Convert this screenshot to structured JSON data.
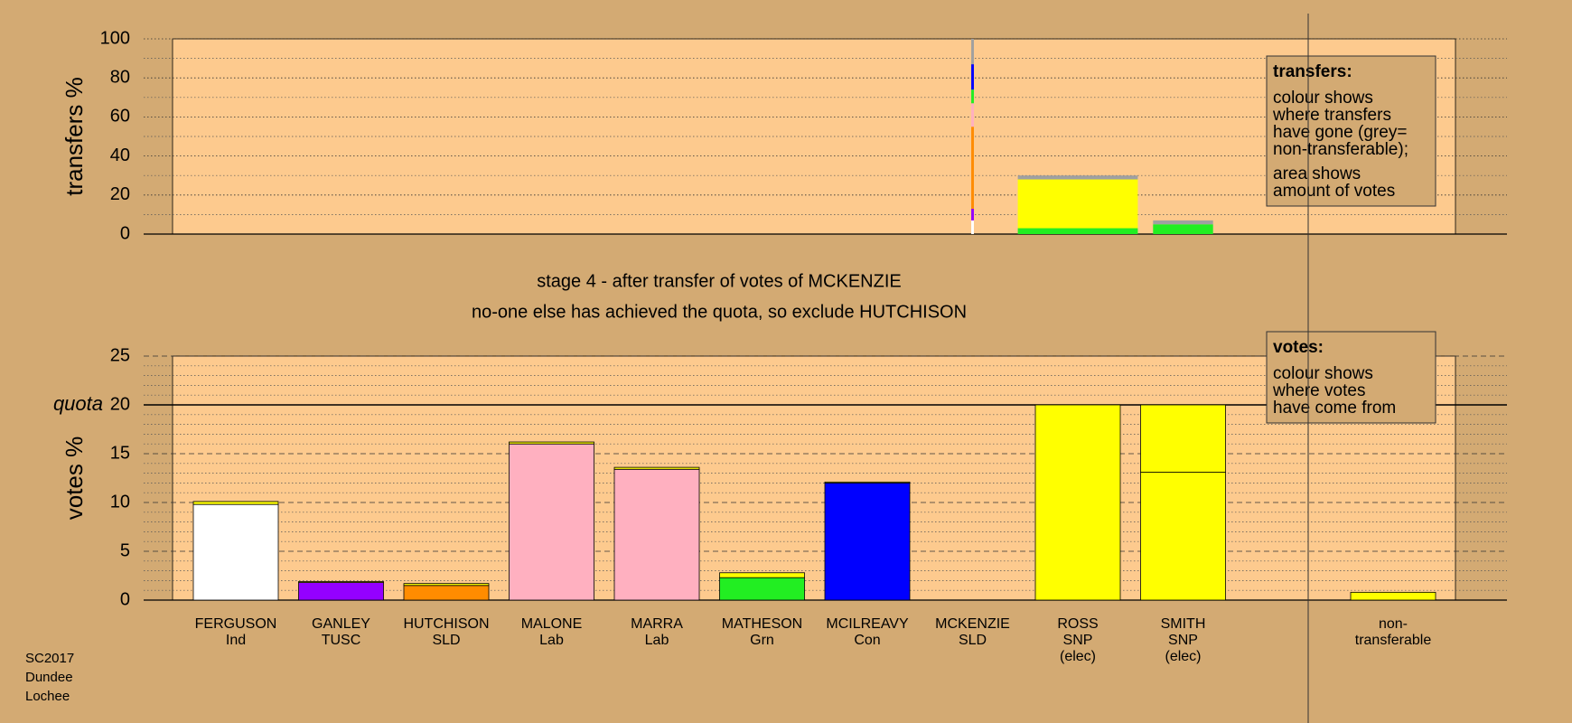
{
  "chart_data": [
    {
      "type": "transfer-bar",
      "ylabel": "transfers %",
      "ylim": [
        0,
        100
      ],
      "yticks": [
        0,
        20,
        40,
        60,
        80,
        100
      ],
      "minor_yticks": [
        10,
        30,
        50,
        70,
        90
      ],
      "widths": [
        0,
        0,
        0,
        0,
        0,
        0,
        0,
        0.025,
        1.14,
        0.57,
        0
      ],
      "series": [
        {
          "color": "#ffffff",
          "values": [
            0,
            0,
            0,
            0,
            0,
            0,
            0,
            7,
            0,
            0,
            0
          ]
        },
        {
          "color": "#9400ff",
          "values": [
            0,
            0,
            0,
            0,
            0,
            0,
            0,
            6,
            0,
            0,
            0
          ]
        },
        {
          "color": "#ff8c00",
          "values": [
            0,
            0,
            0,
            0,
            0,
            0,
            0,
            42,
            0,
            0,
            0
          ]
        },
        {
          "color": "#ffb0c0",
          "values": [
            0,
            0,
            0,
            0,
            0,
            0,
            0,
            12,
            0,
            0,
            0
          ]
        },
        {
          "color": "#22ee22",
          "values": [
            0,
            0,
            0,
            0,
            0,
            0,
            0,
            7,
            3,
            5,
            0
          ]
        },
        {
          "color": "#0000ff",
          "values": [
            0,
            0,
            0,
            0,
            0,
            0,
            0,
            13,
            0,
            0,
            0
          ]
        },
        {
          "color": "#ffff00",
          "values": [
            0,
            0,
            0,
            0,
            0,
            0,
            0,
            0,
            25,
            0,
            0
          ]
        },
        {
          "color": "#a0a0a0",
          "values": [
            0,
            0,
            0,
            0,
            0,
            0,
            0,
            13,
            2,
            2,
            0
          ]
        }
      ],
      "note": {
        "heading": "transfers:",
        "paragraphs": [
          [
            "colour shows",
            "where transfers",
            "have gone (grey=",
            "non-transferable);"
          ],
          [
            "area shows",
            "amount of votes"
          ]
        ]
      }
    },
    {
      "type": "stacked-bar",
      "title": "stage 4 - after transfer of votes of MCKENZIE",
      "subtitle": "no-one else has achieved the quota, so exclude HUTCHISON",
      "ylabel": "votes %",
      "ylim": [
        0,
        25
      ],
      "yticks": [
        0,
        5,
        10,
        15,
        20,
        25
      ],
      "minor_yticks": [
        1,
        2,
        3,
        4,
        6,
        7,
        8,
        9,
        11,
        12,
        13,
        14,
        16,
        17,
        18,
        19,
        21,
        22,
        23,
        24
      ],
      "quota": {
        "value": 20,
        "label": "quota"
      },
      "categories": [
        [
          "FERGUSON",
          "Ind"
        ],
        [
          "GANLEY",
          "TUSC"
        ],
        [
          "HUTCHISON",
          "SLD"
        ],
        [
          "MALONE",
          "Lab"
        ],
        [
          "MARRA",
          "Lab"
        ],
        [
          "MATHESON",
          "Grn"
        ],
        [
          "MCILREAVY",
          "Con"
        ],
        [
          "MCKENZIE",
          "SLD"
        ],
        [
          "ROSS",
          "SNP",
          "(elec)"
        ],
        [
          "SMITH",
          "SNP",
          "(elec)"
        ],
        [
          "non-",
          "transferable"
        ]
      ],
      "series": [
        {
          "colors": [
            "#ffffff",
            "#9400ff",
            "#ff8c00",
            "#ffb0c0",
            "#ffb0c0",
            "#22ee22",
            "#0000ff",
            "#ff8c00",
            "#ffff00",
            "#ffff00",
            "#ffff00"
          ],
          "values": [
            9.8,
            1.8,
            1.5,
            16.0,
            13.4,
            2.3,
            12.0,
            0,
            20,
            13.1,
            0
          ]
        },
        {
          "color": "#ffff00",
          "values": [
            0.3,
            0.1,
            0.2,
            0.2,
            0.2,
            0.5,
            0.1,
            0,
            0,
            6.9,
            0.8
          ]
        }
      ],
      "note": {
        "heading": "votes:",
        "paragraphs": [
          [
            "colour shows",
            "where votes",
            "have come from"
          ]
        ]
      }
    }
  ],
  "footer": [
    "SC2017",
    "Dundee",
    "Lochee"
  ]
}
